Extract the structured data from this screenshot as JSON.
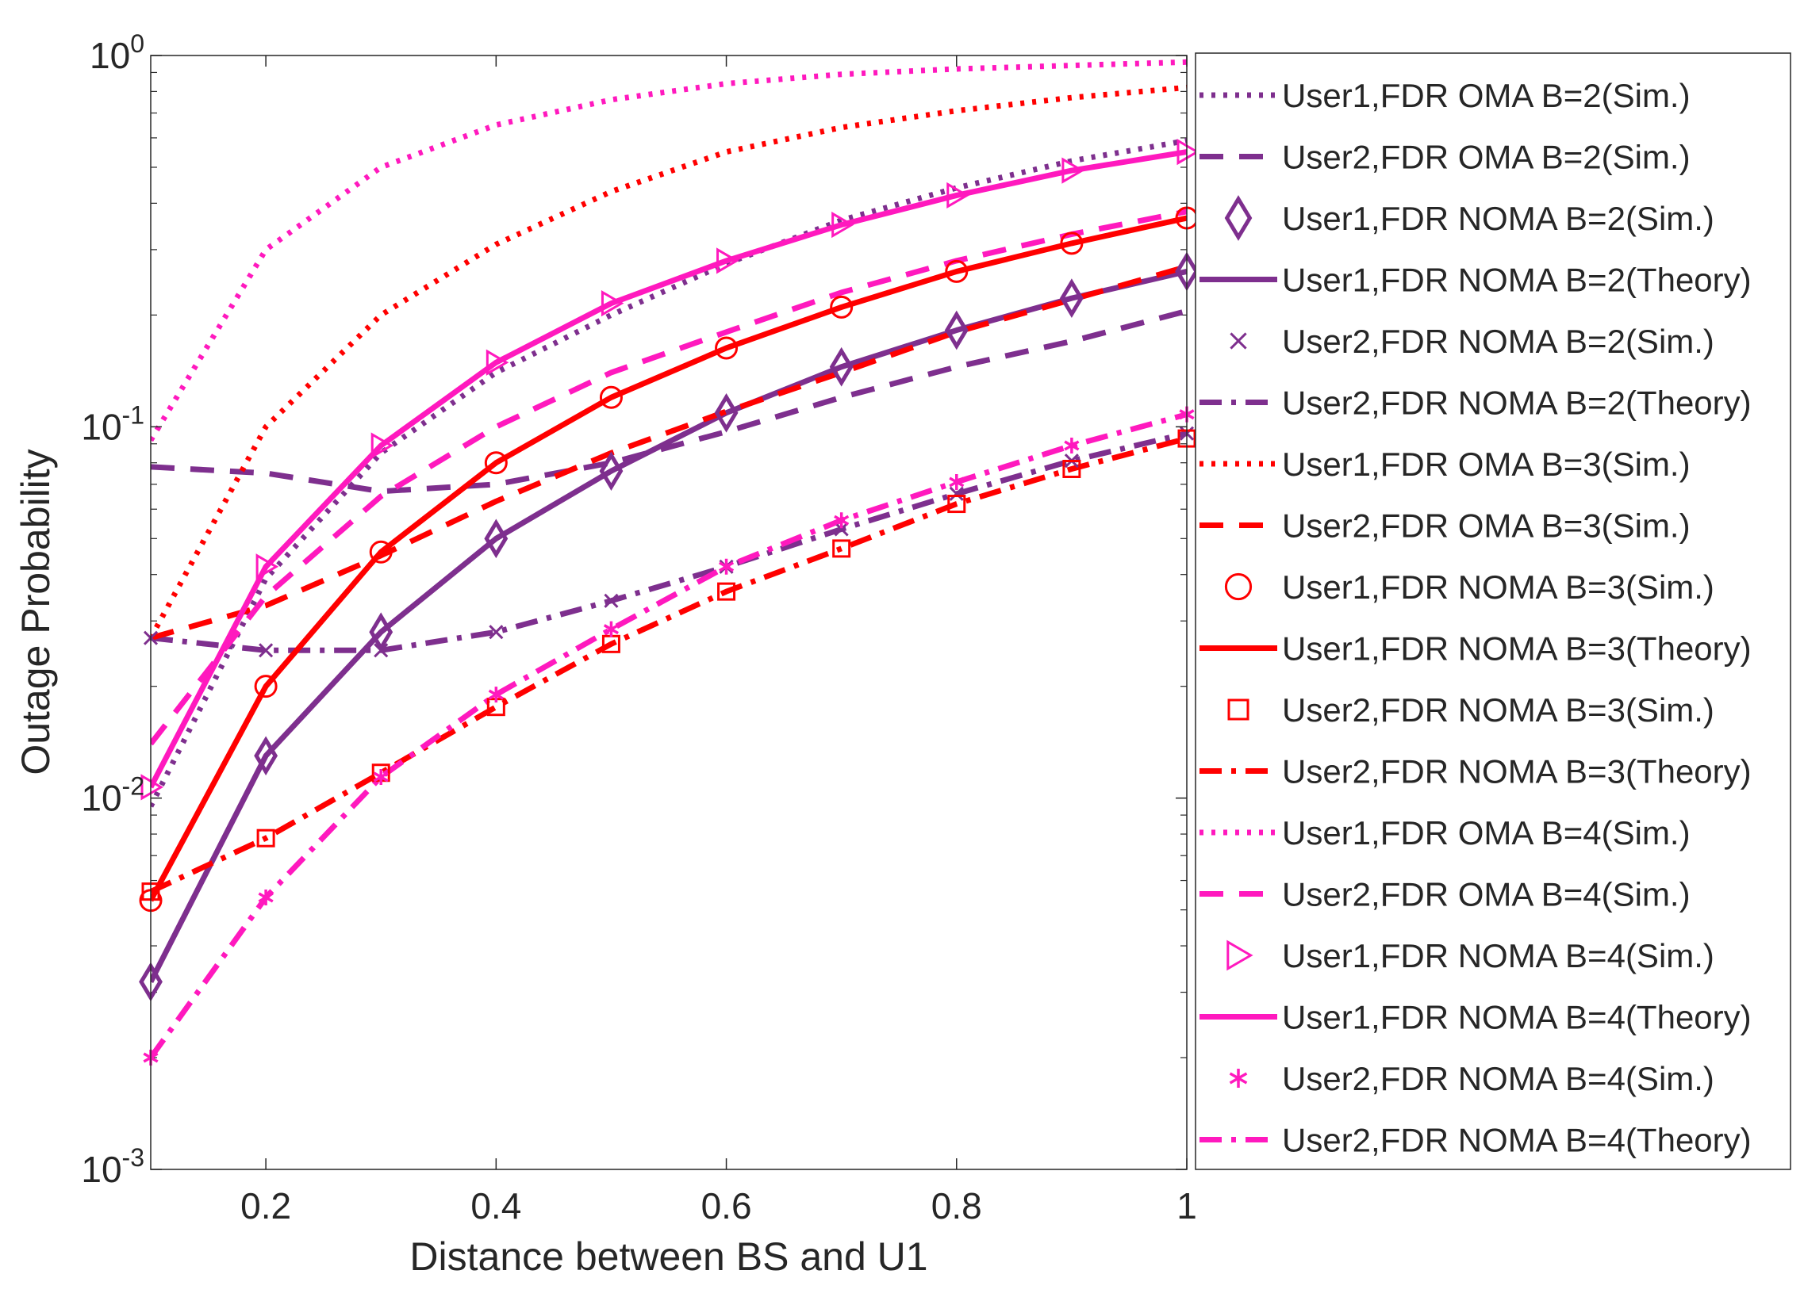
{
  "chart_data": {
    "type": "line",
    "title": "",
    "xlabel": "Distance between BS and U1",
    "ylabel": "Outage Probability",
    "xlim": [
      0.1,
      1.0
    ],
    "ylim": [
      0.001,
      1
    ],
    "yscale": "log",
    "grid": false,
    "legend_position": "outside-right",
    "x": [
      0.1,
      0.2,
      0.3,
      0.4,
      0.5,
      0.6,
      0.7,
      0.8,
      0.9,
      1.0
    ],
    "x_tick_labels": [
      "0.2",
      "0.4",
      "0.6",
      "0.8",
      "1"
    ],
    "y_ticks": [
      {
        "value": 0.001,
        "base": "10",
        "exp": "-3"
      },
      {
        "value": 0.01,
        "base": "10",
        "exp": "-2"
      },
      {
        "value": 0.1,
        "base": "10",
        "exp": "-1"
      },
      {
        "value": 1,
        "base": "10",
        "exp": "0"
      }
    ],
    "colors": {
      "purple": "#7E2F8E",
      "red": "#FF0000",
      "magenta": "#FF19BE"
    },
    "series": [
      {
        "name": "User1,FDR OMA B=2(Sim.)",
        "color": "#7E2F8E",
        "line": "dotted",
        "marker": "none",
        "values": [
          0.0095,
          0.039,
          0.085,
          0.14,
          0.2,
          0.275,
          0.36,
          0.44,
          0.52,
          0.59
        ]
      },
      {
        "name": "User2,FDR OMA B=2(Sim.)",
        "color": "#7E2F8E",
        "line": "dashed",
        "marker": "none",
        "values": [
          0.078,
          0.075,
          0.067,
          0.07,
          0.08,
          0.097,
          0.12,
          0.145,
          0.17,
          0.205
        ]
      },
      {
        "name": "User1,FDR NOMA B=2(Sim.)",
        "color": "#7E2F8E",
        "line": "none",
        "marker": "diamond",
        "values": [
          0.0032,
          0.013,
          0.028,
          0.05,
          0.076,
          0.109,
          0.145,
          0.182,
          0.222,
          0.262
        ]
      },
      {
        "name": "User1,FDR NOMA B=2(Theory)",
        "color": "#7E2F8E",
        "line": "solid",
        "marker": "none",
        "values": [
          0.0032,
          0.013,
          0.028,
          0.05,
          0.076,
          0.109,
          0.145,
          0.182,
          0.222,
          0.262
        ]
      },
      {
        "name": "User2,FDR NOMA B=2(Sim.)",
        "color": "#7E2F8E",
        "line": "none",
        "marker": "x",
        "values": [
          0.027,
          0.025,
          0.025,
          0.028,
          0.034,
          0.042,
          0.053,
          0.066,
          0.081,
          0.096
        ]
      },
      {
        "name": "User2,FDR NOMA B=2(Theory)",
        "color": "#7E2F8E",
        "line": "dashdot",
        "marker": "none",
        "values": [
          0.027,
          0.025,
          0.025,
          0.028,
          0.034,
          0.042,
          0.053,
          0.066,
          0.081,
          0.096
        ]
      },
      {
        "name": "User1,FDR OMA B=3(Sim.)",
        "color": "#FF0000",
        "line": "dotted",
        "marker": "none",
        "values": [
          0.027,
          0.1,
          0.2,
          0.31,
          0.43,
          0.55,
          0.64,
          0.71,
          0.77,
          0.82
        ]
      },
      {
        "name": "User2,FDR OMA B=3(Sim.)",
        "color": "#FF0000",
        "line": "dashed",
        "marker": "none",
        "values": [
          0.027,
          0.033,
          0.045,
          0.063,
          0.085,
          0.11,
          0.14,
          0.18,
          0.22,
          0.27
        ]
      },
      {
        "name": "User1,FDR NOMA B=3(Sim.)",
        "color": "#FF0000",
        "line": "none",
        "marker": "circle",
        "values": [
          0.0053,
          0.02,
          0.046,
          0.08,
          0.12,
          0.163,
          0.21,
          0.262,
          0.312,
          0.365
        ]
      },
      {
        "name": "User1,FDR NOMA B=3(Theory)",
        "color": "#FF0000",
        "line": "solid",
        "marker": "none",
        "values": [
          0.0053,
          0.02,
          0.046,
          0.08,
          0.12,
          0.163,
          0.21,
          0.262,
          0.312,
          0.365
        ]
      },
      {
        "name": "User2,FDR NOMA B=3(Sim.)",
        "color": "#FF0000",
        "line": "none",
        "marker": "square",
        "values": [
          0.0056,
          0.0078,
          0.0117,
          0.0176,
          0.026,
          0.036,
          0.047,
          0.062,
          0.077,
          0.093
        ]
      },
      {
        "name": "User2,FDR NOMA B=3(Theory)",
        "color": "#FF0000",
        "line": "dashdot",
        "marker": "none",
        "values": [
          0.0056,
          0.0078,
          0.0117,
          0.0176,
          0.026,
          0.036,
          0.047,
          0.062,
          0.077,
          0.093
        ]
      },
      {
        "name": "User1,FDR OMA B=4(Sim.)",
        "color": "#FF19BE",
        "line": "dotted",
        "marker": "none",
        "values": [
          0.092,
          0.3,
          0.5,
          0.65,
          0.76,
          0.84,
          0.89,
          0.92,
          0.94,
          0.96
        ]
      },
      {
        "name": "User2,FDR OMA B=4(Sim.)",
        "color": "#FF19BE",
        "line": "dashed",
        "marker": "none",
        "values": [
          0.014,
          0.035,
          0.065,
          0.1,
          0.14,
          0.18,
          0.23,
          0.28,
          0.33,
          0.38
        ]
      },
      {
        "name": "User1,FDR NOMA B=4(Sim.)",
        "color": "#FF19BE",
        "line": "none",
        "marker": "triangle-right",
        "values": [
          0.0107,
          0.042,
          0.089,
          0.149,
          0.215,
          0.28,
          0.35,
          0.42,
          0.49,
          0.55
        ]
      },
      {
        "name": "User1,FDR NOMA B=4(Theory)",
        "color": "#FF19BE",
        "line": "solid",
        "marker": "none",
        "values": [
          0.0107,
          0.042,
          0.089,
          0.149,
          0.215,
          0.28,
          0.35,
          0.42,
          0.49,
          0.55
        ]
      },
      {
        "name": "User2,FDR NOMA B=4(Sim.)",
        "color": "#FF19BE",
        "line": "none",
        "marker": "asterisk",
        "values": [
          0.002,
          0.0054,
          0.0114,
          0.019,
          0.0285,
          0.042,
          0.056,
          0.071,
          0.089,
          0.108
        ]
      },
      {
        "name": "User2,FDR NOMA B=4(Theory)",
        "color": "#FF19BE",
        "line": "dashdot",
        "marker": "none",
        "values": [
          0.002,
          0.0054,
          0.0114,
          0.019,
          0.0285,
          0.042,
          0.056,
          0.071,
          0.089,
          0.108
        ]
      }
    ]
  }
}
